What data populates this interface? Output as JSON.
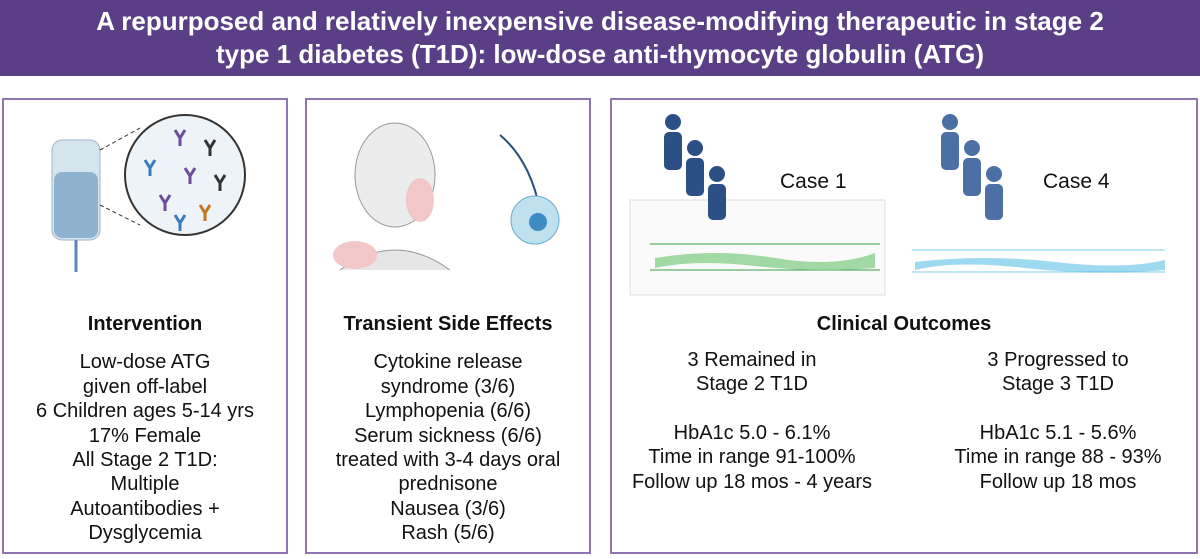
{
  "header": {
    "title_lines": [
      "A repurposed and relatively inexpensive disease-modifying therapeutic in stage 2",
      "type 1 diabetes (T1D): low-dose anti-thymocyte globulin (ATG)"
    ]
  },
  "panels": [
    {
      "heading": "Intervention",
      "lines": [
        "Low-dose ATG",
        "given off-label",
        "6 Children ages 5-14 yrs",
        "17% Female",
        "All Stage 2 T1D:",
        "Multiple",
        "Autoantibodies +",
        "Dysglycemia"
      ]
    },
    {
      "heading": "Transient Side Effects",
      "lines": [
        "Cytokine release",
        "syndrome (3/6)",
        "Lymphopenia (6/6)",
        "Serum sickness (6/6)",
        "treated with 3-4 days oral",
        "prednisone",
        "Nausea (3/6)",
        "Rash (5/6)"
      ]
    }
  ],
  "outcomes": {
    "heading": "Clinical Outcomes",
    "cases": [
      {
        "label": "Case 1",
        "result": [
          "3 Remained in",
          "Stage 2 T1D"
        ],
        "details": [
          "HbA1c 5.0 - 6.1%",
          "Time in range 91-100%",
          "Follow up 18 mos - 4 years"
        ]
      },
      {
        "label": "Case 4",
        "result": [
          "3 Progressed to",
          "Stage 3 T1D"
        ],
        "details": [
          "HbA1c 5.1 - 5.6%",
          "Time in range 88 - 93%",
          "Follow up 18 mos"
        ]
      }
    ]
  }
}
